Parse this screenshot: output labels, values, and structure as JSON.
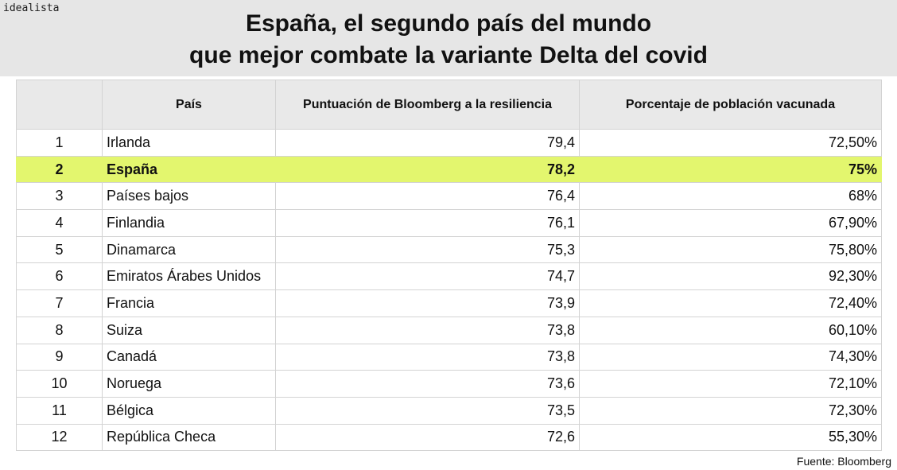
{
  "brand": "idealista",
  "source": "Fuente: Bloomberg",
  "colors": {
    "banner_bg": "#e6e6e6",
    "header_bg": "#e9e9e9",
    "grid": "#d3d3d3",
    "highlight": "#e3f66e",
    "text": "#111111",
    "page_bg": "#ffffff"
  },
  "chart_data": {
    "type": "table",
    "title": [
      "España, el segundo país del mundo",
      "que mejor combate la variante Delta del covid"
    ],
    "columns": {
      "country": "País",
      "score": "Puntuación de Bloomberg a la resiliencia",
      "vaccinated": "Porcentaje de población vacunada"
    },
    "rows": [
      {
        "rank": "1",
        "country": "Irlanda",
        "score": "79,4",
        "vaccinated": "72,50%",
        "highlight": false
      },
      {
        "rank": "2",
        "country": "España",
        "score": "78,2",
        "vaccinated": "75%",
        "highlight": true
      },
      {
        "rank": "3",
        "country": "Países bajos",
        "score": "76,4",
        "vaccinated": "68%",
        "highlight": false
      },
      {
        "rank": "4",
        "country": "Finlandia",
        "score": "76,1",
        "vaccinated": "67,90%",
        "highlight": false
      },
      {
        "rank": "5",
        "country": "Dinamarca",
        "score": "75,3",
        "vaccinated": "75,80%",
        "highlight": false
      },
      {
        "rank": "6",
        "country": "Emiratos Árabes Unidos",
        "score": "74,7",
        "vaccinated": "92,30%",
        "highlight": false
      },
      {
        "rank": "7",
        "country": "Francia",
        "score": "73,9",
        "vaccinated": "72,40%",
        "highlight": false
      },
      {
        "rank": "8",
        "country": "Suiza",
        "score": "73,8",
        "vaccinated": "60,10%",
        "highlight": false
      },
      {
        "rank": "9",
        "country": "Canadá",
        "score": "73,8",
        "vaccinated": "74,30%",
        "highlight": false
      },
      {
        "rank": "10",
        "country": "Noruega",
        "score": "73,6",
        "vaccinated": "72,10%",
        "highlight": false
      },
      {
        "rank": "11",
        "country": "Bélgica",
        "score": "73,5",
        "vaccinated": "72,30%",
        "highlight": false
      },
      {
        "rank": "12",
        "country": "República Checa",
        "score": "72,6",
        "vaccinated": "55,30%",
        "highlight": false
      }
    ]
  }
}
